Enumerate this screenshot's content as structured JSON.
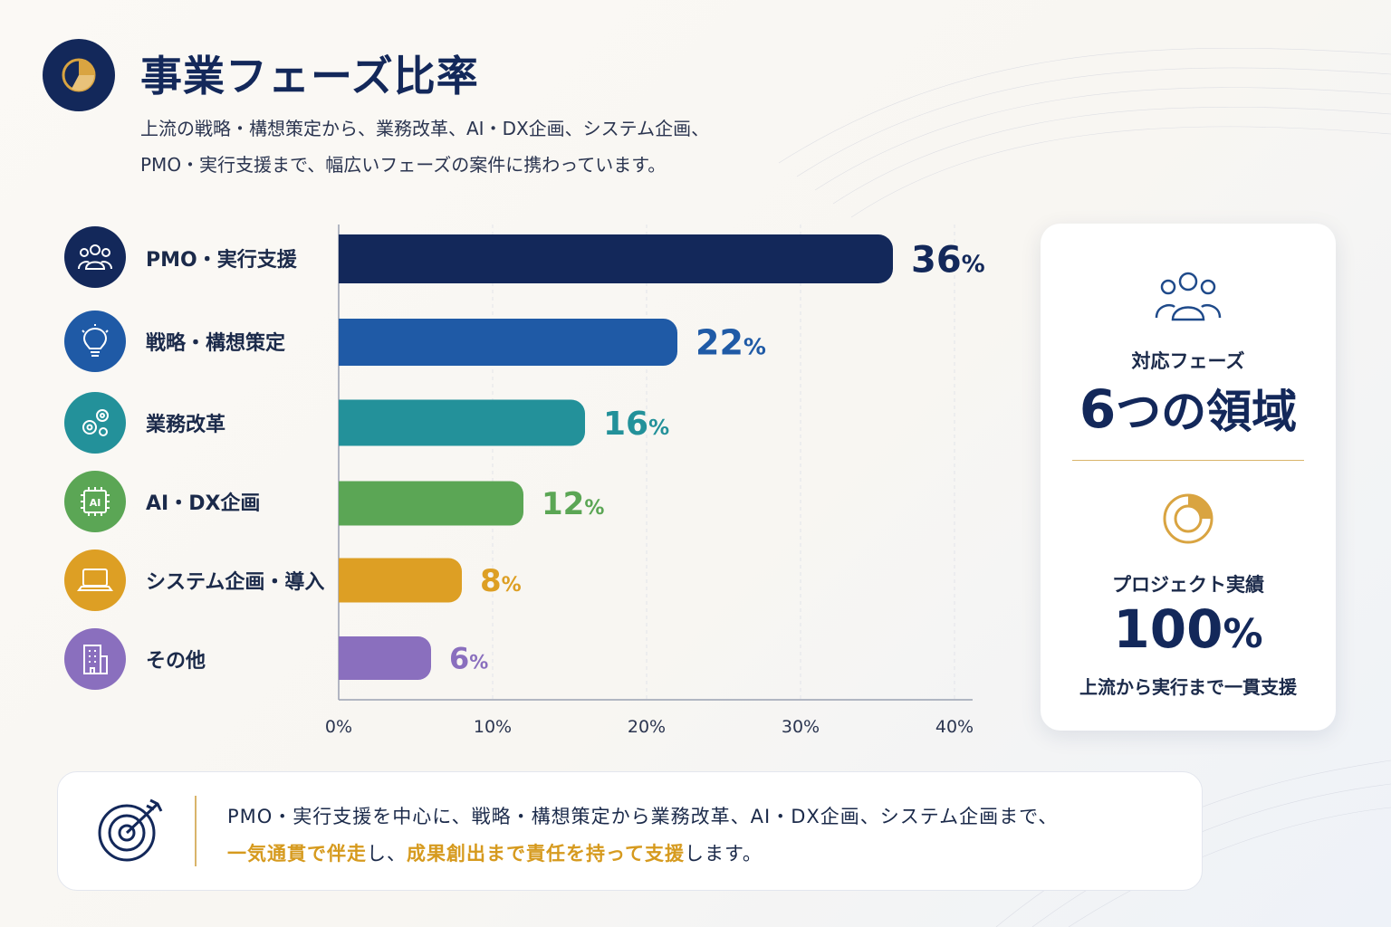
{
  "header": {
    "title": "事業フェーズ比率",
    "subtitle_line1": "上流の戦略・構想策定から、業務改革、AI・DX企画、システム企画、",
    "subtitle_line2": "PMO・実行支援まで、幅広いフェーズの案件に携わっています。",
    "icon": "pie-chart-icon"
  },
  "chart_data": {
    "type": "bar",
    "orientation": "horizontal",
    "categories": [
      "PMO・実行支援",
      "戦略・構想策定",
      "業務改革",
      "AI・DX企画",
      "システム企画・導入",
      "その他"
    ],
    "values": [
      36,
      22,
      16,
      12,
      8,
      6
    ],
    "value_suffix": "%",
    "data_labels": [
      "36",
      "22",
      "16",
      "12",
      "8",
      "6"
    ],
    "colors": [
      "#13285a",
      "#1f5aa6",
      "#23919a",
      "#5ba655",
      "#dd9f24",
      "#8a6fbe"
    ],
    "category_icons": [
      "people-icon",
      "lightbulb-icon",
      "gears-icon",
      "ai-chip-icon",
      "laptop-icon",
      "building-icon"
    ],
    "xlim": [
      0,
      40
    ],
    "xticks": [
      "0%",
      "10%",
      "20%",
      "30%",
      "40%"
    ],
    "grid": true,
    "title": "",
    "xlabel": "",
    "ylabel": ""
  },
  "side_card": {
    "phases_label": "対応フェーズ",
    "phases_number": "6",
    "phases_unit": "つの領域",
    "record_label": "プロジェクト実績",
    "record_number": "100",
    "record_unit": "%",
    "record_note": "上流から実行まで一貫支援",
    "icons": [
      "team-icon",
      "donut-chart-icon"
    ]
  },
  "bottom": {
    "line1": "PMO・実行支援を中心に、戦略・構想策定から業務改革、AI・DX企画、システム企画まで、",
    "highlight1": "一気通貫で伴走",
    "text_mid": "し、",
    "highlight2": "成果創出まで責任を持って支援",
    "text_end": "します。",
    "icon": "target-icon",
    "accent_color": "#d69a1e"
  }
}
